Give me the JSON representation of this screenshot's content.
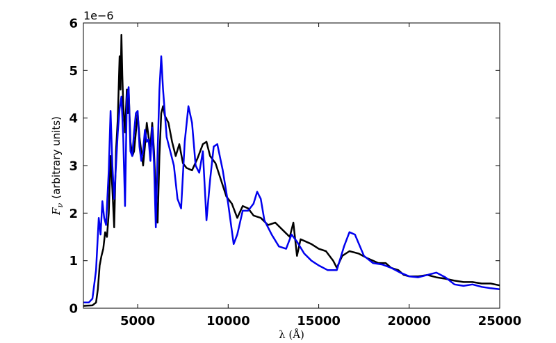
{
  "chart_data": {
    "type": "line",
    "xlabel": "λ (Å)",
    "ylabel_symbol": "F",
    "ylabel_subscript": "ν",
    "ylabel_text": "(arbitrary units)",
    "y_offset_label": "1e−6",
    "xlim": [
      2000,
      25000
    ],
    "ylim": [
      0,
      6
    ],
    "x_ticks": [
      5000,
      10000,
      15000,
      20000,
      25000
    ],
    "x_tick_labels": [
      "5000",
      "10000",
      "15000",
      "20000",
      "25000"
    ],
    "y_ticks": [
      0,
      1,
      2,
      3,
      4,
      5,
      6
    ],
    "y_tick_labels": [
      "0",
      "1",
      "2",
      "3",
      "4",
      "5",
      "6"
    ],
    "grid": false,
    "series": [
      {
        "color": "#000000",
        "points": [
          [
            2000,
            0.05
          ],
          [
            2500,
            0.06
          ],
          [
            2700,
            0.12
          ],
          [
            2800,
            0.4
          ],
          [
            2900,
            0.9
          ],
          [
            3000,
            1.1
          ],
          [
            3100,
            1.25
          ],
          [
            3200,
            1.6
          ],
          [
            3300,
            1.5
          ],
          [
            3400,
            2.0
          ],
          [
            3500,
            3.2
          ],
          [
            3600,
            2.5
          ],
          [
            3700,
            1.7
          ],
          [
            3800,
            3.3
          ],
          [
            3900,
            4.0
          ],
          [
            4000,
            5.3
          ],
          [
            4050,
            4.6
          ],
          [
            4100,
            5.75
          ],
          [
            4150,
            4.9
          ],
          [
            4200,
            4.3
          ],
          [
            4300,
            3.7
          ],
          [
            4400,
            4.6
          ],
          [
            4450,
            4.1
          ],
          [
            4500,
            4.6
          ],
          [
            4600,
            3.5
          ],
          [
            4700,
            3.2
          ],
          [
            4800,
            3.3
          ],
          [
            4900,
            3.7
          ],
          [
            5000,
            4.1
          ],
          [
            5100,
            3.6
          ],
          [
            5200,
            3.3
          ],
          [
            5300,
            3.0
          ],
          [
            5400,
            3.4
          ],
          [
            5500,
            3.9
          ],
          [
            5600,
            3.6
          ],
          [
            5700,
            3.4
          ],
          [
            5800,
            3.9
          ],
          [
            5900,
            3.3
          ],
          [
            6000,
            2.4
          ],
          [
            6100,
            1.8
          ],
          [
            6200,
            3.2
          ],
          [
            6300,
            4.1
          ],
          [
            6400,
            4.25
          ],
          [
            6500,
            4.05
          ],
          [
            6700,
            3.9
          ],
          [
            6900,
            3.5
          ],
          [
            7100,
            3.2
          ],
          [
            7300,
            3.45
          ],
          [
            7500,
            3.05
          ],
          [
            7700,
            2.95
          ],
          [
            8000,
            2.9
          ],
          [
            8300,
            3.15
          ],
          [
            8600,
            3.45
          ],
          [
            8800,
            3.5
          ],
          [
            9000,
            3.2
          ],
          [
            9300,
            3.05
          ],
          [
            9600,
            2.7
          ],
          [
            9900,
            2.35
          ],
          [
            10200,
            2.2
          ],
          [
            10500,
            1.9
          ],
          [
            10800,
            2.15
          ],
          [
            11100,
            2.1
          ],
          [
            11400,
            1.95
          ],
          [
            11800,
            1.9
          ],
          [
            12200,
            1.75
          ],
          [
            12600,
            1.8
          ],
          [
            13000,
            1.65
          ],
          [
            13400,
            1.5
          ],
          [
            13600,
            1.8
          ],
          [
            13800,
            1.1
          ],
          [
            14000,
            1.45
          ],
          [
            14300,
            1.4
          ],
          [
            14600,
            1.35
          ],
          [
            15000,
            1.25
          ],
          [
            15400,
            1.2
          ],
          [
            15800,
            1.0
          ],
          [
            16000,
            0.85
          ],
          [
            16300,
            1.1
          ],
          [
            16700,
            1.2
          ],
          [
            17200,
            1.15
          ],
          [
            17700,
            1.05
          ],
          [
            18300,
            0.95
          ],
          [
            18700,
            0.95
          ],
          [
            19000,
            0.85
          ],
          [
            19400,
            0.8
          ],
          [
            19700,
            0.7
          ],
          [
            20000,
            0.67
          ],
          [
            20500,
            0.67
          ],
          [
            21000,
            0.7
          ],
          [
            21500,
            0.65
          ],
          [
            22000,
            0.62
          ],
          [
            22500,
            0.58
          ],
          [
            23000,
            0.55
          ],
          [
            23500,
            0.55
          ],
          [
            24000,
            0.52
          ],
          [
            24500,
            0.52
          ],
          [
            25000,
            0.48
          ]
        ]
      },
      {
        "color": "#0000ee",
        "points": [
          [
            2000,
            0.12
          ],
          [
            2300,
            0.12
          ],
          [
            2500,
            0.2
          ],
          [
            2700,
            0.8
          ],
          [
            2850,
            1.9
          ],
          [
            2950,
            1.55
          ],
          [
            3050,
            2.25
          ],
          [
            3150,
            1.9
          ],
          [
            3250,
            1.75
          ],
          [
            3400,
            2.9
          ],
          [
            3500,
            4.15
          ],
          [
            3600,
            3.0
          ],
          [
            3700,
            2.3
          ],
          [
            3800,
            3.0
          ],
          [
            3900,
            3.7
          ],
          [
            4000,
            4.2
          ],
          [
            4100,
            4.45
          ],
          [
            4200,
            3.6
          ],
          [
            4300,
            2.15
          ],
          [
            4400,
            4.4
          ],
          [
            4500,
            4.65
          ],
          [
            4600,
            3.3
          ],
          [
            4700,
            3.2
          ],
          [
            4800,
            3.7
          ],
          [
            4900,
            4.1
          ],
          [
            5000,
            4.15
          ],
          [
            5100,
            3.4
          ],
          [
            5200,
            3.1
          ],
          [
            5300,
            3.3
          ],
          [
            5400,
            3.75
          ],
          [
            5500,
            3.5
          ],
          [
            5600,
            3.55
          ],
          [
            5700,
            3.1
          ],
          [
            5800,
            3.8
          ],
          [
            5900,
            3.05
          ],
          [
            6000,
            1.7
          ],
          [
            6100,
            3.3
          ],
          [
            6200,
            4.6
          ],
          [
            6300,
            5.3
          ],
          [
            6400,
            4.6
          ],
          [
            6600,
            3.6
          ],
          [
            6800,
            3.3
          ],
          [
            7000,
            3.0
          ],
          [
            7200,
            2.3
          ],
          [
            7400,
            2.1
          ],
          [
            7600,
            3.5
          ],
          [
            7800,
            4.25
          ],
          [
            8000,
            3.9
          ],
          [
            8200,
            3.0
          ],
          [
            8400,
            2.85
          ],
          [
            8600,
            3.3
          ],
          [
            8800,
            1.85
          ],
          [
            9000,
            2.7
          ],
          [
            9200,
            3.4
          ],
          [
            9400,
            3.45
          ],
          [
            9700,
            2.9
          ],
          [
            10000,
            2.2
          ],
          [
            10300,
            1.35
          ],
          [
            10500,
            1.55
          ],
          [
            10800,
            2.05
          ],
          [
            11100,
            2.05
          ],
          [
            11400,
            2.2
          ],
          [
            11600,
            2.45
          ],
          [
            11800,
            2.3
          ],
          [
            12000,
            1.85
          ],
          [
            12400,
            1.55
          ],
          [
            12800,
            1.3
          ],
          [
            13200,
            1.25
          ],
          [
            13500,
            1.55
          ],
          [
            13800,
            1.4
          ],
          [
            14200,
            1.15
          ],
          [
            14600,
            1.0
          ],
          [
            15000,
            0.9
          ],
          [
            15500,
            0.8
          ],
          [
            16000,
            0.8
          ],
          [
            16400,
            1.3
          ],
          [
            16700,
            1.6
          ],
          [
            17000,
            1.55
          ],
          [
            17500,
            1.1
          ],
          [
            18000,
            0.95
          ],
          [
            18500,
            0.92
          ],
          [
            19000,
            0.85
          ],
          [
            19500,
            0.75
          ],
          [
            20000,
            0.67
          ],
          [
            20500,
            0.65
          ],
          [
            21000,
            0.7
          ],
          [
            21500,
            0.75
          ],
          [
            22000,
            0.65
          ],
          [
            22500,
            0.5
          ],
          [
            23000,
            0.47
          ],
          [
            23500,
            0.5
          ],
          [
            24000,
            0.45
          ],
          [
            24500,
            0.42
          ],
          [
            25000,
            0.4
          ]
        ]
      }
    ]
  }
}
